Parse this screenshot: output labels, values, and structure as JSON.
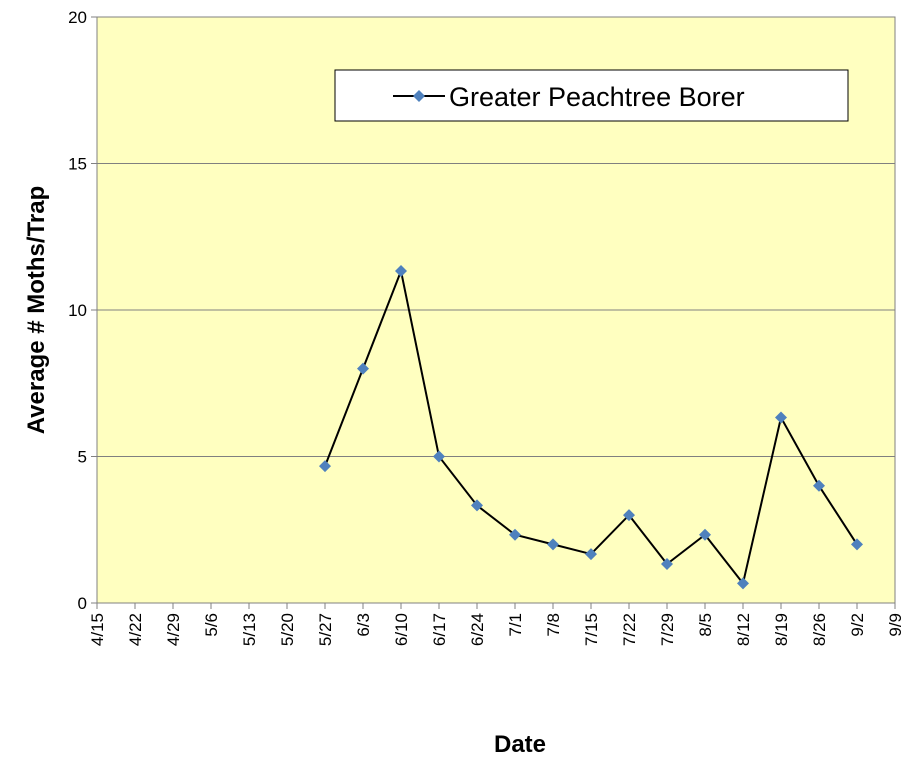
{
  "chart_data": {
    "type": "line",
    "x_label": "Date",
    "y_label": "Average # Moths/Trap",
    "categories": [
      "4/15",
      "4/22",
      "4/29",
      "5/6",
      "5/13",
      "5/20",
      "5/27",
      "6/3",
      "6/10",
      "6/17",
      "6/24",
      "7/1",
      "7/8",
      "7/15",
      "7/22",
      "7/29",
      "8/5",
      "8/12",
      "8/19",
      "8/26",
      "9/2",
      "9/9"
    ],
    "series": [
      {
        "name": "Greater Peachtree Borer",
        "color": "#4f81bd",
        "values": [
          null,
          null,
          null,
          null,
          null,
          null,
          4.67,
          8,
          11.33,
          5,
          3.33,
          2.33,
          2,
          1.67,
          3,
          1.33,
          2.33,
          0.67,
          6.33,
          4,
          2,
          null
        ]
      }
    ],
    "ylim": [
      0,
      20
    ],
    "yticks": [
      0,
      5,
      10,
      15,
      20
    ],
    "grid": true,
    "legend": "upper right"
  }
}
